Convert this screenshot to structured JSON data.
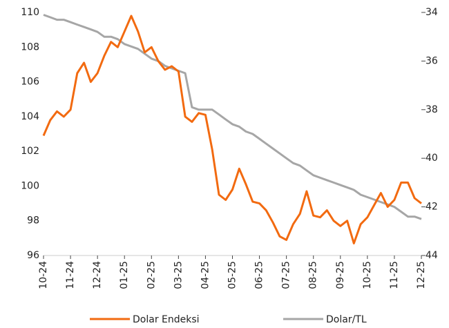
{
  "chart_data": {
    "type": "line",
    "categories": [
      "10-24",
      null,
      null,
      null,
      "11-24",
      null,
      null,
      null,
      "12-24",
      null,
      null,
      null,
      "01-25",
      null,
      null,
      null,
      "02-25",
      null,
      null,
      null,
      "03-25",
      null,
      null,
      null,
      "04-25",
      null,
      null,
      null,
      "05-25",
      null,
      null,
      null,
      "06-25",
      null,
      null,
      null,
      "07-25",
      null,
      null,
      null,
      "08-25",
      null,
      null,
      null,
      "09-25",
      null,
      null,
      null,
      "10-25",
      null,
      null,
      null,
      "11-25",
      null,
      null,
      null,
      "12-25"
    ],
    "series": [
      {
        "name": "Dolar Endeksi",
        "color": "#f26a10",
        "axis": "y",
        "values": [
          102.9,
          103.8,
          104.3,
          104.0,
          104.4,
          106.5,
          107.1,
          106.0,
          106.5,
          107.5,
          108.3,
          108.0,
          108.9,
          109.8,
          108.9,
          107.7,
          108.0,
          107.2,
          106.7,
          106.9,
          106.6,
          104.0,
          103.7,
          104.2,
          104.1,
          102.1,
          99.5,
          99.2,
          99.8,
          101.0,
          100.1,
          99.1,
          99.0,
          98.6,
          97.9,
          97.1,
          96.9,
          97.8,
          98.4,
          99.7,
          98.3,
          98.2,
          98.6,
          98.0,
          97.7,
          98.0,
          96.7,
          97.8,
          98.2,
          98.9,
          99.6,
          98.8,
          99.2,
          100.2,
          100.2,
          99.3,
          99.0
        ]
      },
      {
        "name": "Dolar/TL",
        "color": "#a6a6a6",
        "axis": "y2",
        "values": [
          34.1,
          34.2,
          34.3,
          34.3,
          34.4,
          34.5,
          34.6,
          34.7,
          34.8,
          35.0,
          35.0,
          35.1,
          35.3,
          35.4,
          35.5,
          35.7,
          35.9,
          36.0,
          36.2,
          36.3,
          36.4,
          36.5,
          37.9,
          38.0,
          38.0,
          38.0,
          38.2,
          38.4,
          38.6,
          38.7,
          38.9,
          39.0,
          39.2,
          39.4,
          39.6,
          39.8,
          40.0,
          40.2,
          40.3,
          40.5,
          40.7,
          40.8,
          40.9,
          41.0,
          41.1,
          41.2,
          41.3,
          41.5,
          41.6,
          41.7,
          41.8,
          41.9,
          42.0,
          42.2,
          42.4,
          42.4,
          42.5
        ]
      }
    ],
    "ylim": [
      96,
      110
    ],
    "yticks": [
      96,
      98,
      100,
      102,
      104,
      106,
      108,
      110
    ],
    "y2lim": [
      44,
      34
    ],
    "y2ticks": [
      34,
      36,
      38,
      40,
      42,
      44
    ],
    "grid": false,
    "legend": "bottom"
  }
}
